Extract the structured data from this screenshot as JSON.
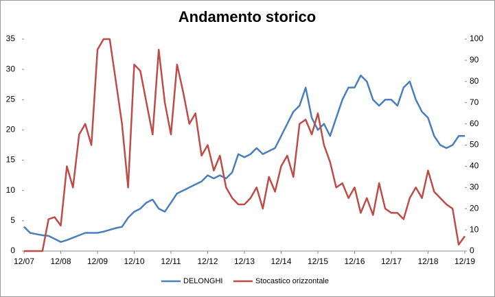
{
  "chart_data": {
    "type": "line",
    "title": "Andamento storico",
    "categories": [
      "12/07",
      null,
      null,
      null,
      null,
      null,
      "12/08",
      null,
      null,
      null,
      null,
      null,
      "12/09",
      null,
      null,
      null,
      null,
      null,
      "12/10",
      null,
      null,
      null,
      null,
      null,
      "12/11",
      null,
      null,
      null,
      null,
      null,
      "12/12",
      null,
      null,
      null,
      null,
      null,
      "12/13",
      null,
      null,
      null,
      null,
      null,
      "12/14",
      null,
      null,
      null,
      null,
      null,
      "12/15",
      null,
      null,
      null,
      null,
      null,
      "12/16",
      null,
      null,
      null,
      null,
      null,
      "12/17",
      null,
      null,
      null,
      null,
      null,
      "12/18",
      null,
      null,
      null,
      null,
      null,
      "12/19"
    ],
    "series": [
      {
        "name": "DELONGHI",
        "color": "#4a7ebb",
        "values": [
          4,
          3,
          2.8,
          2.6,
          2.5,
          2,
          1.5,
          1.8,
          2.2,
          2.6,
          3,
          3,
          3,
          3.2,
          3.5,
          3.8,
          4,
          5.5,
          6.5,
          7,
          8,
          8.5,
          7,
          6.5,
          8,
          9.5,
          10,
          10.5,
          11,
          11.5,
          12.5,
          12,
          12.5,
          12,
          13,
          16,
          15.5,
          16,
          17,
          16,
          16.5,
          17,
          19,
          21,
          23,
          24,
          27,
          22,
          20,
          21,
          19,
          22,
          25,
          27,
          27,
          29,
          28,
          25,
          24,
          25,
          25,
          24,
          27,
          28,
          25,
          23,
          22,
          19,
          17.5,
          17,
          17.5,
          19,
          19
        ]
      },
      {
        "name": "Stocastico orizzontale",
        "color": "#be4b48",
        "axis": "y2",
        "values": [
          0,
          0,
          0,
          0,
          15,
          16,
          12,
          40,
          30,
          55,
          60,
          50,
          95,
          100,
          100,
          80,
          60,
          30,
          88,
          85,
          70,
          55,
          95,
          70,
          55,
          88,
          75,
          60,
          65,
          45,
          50,
          38,
          45,
          30,
          25,
          22,
          22,
          25,
          30,
          20,
          35,
          28,
          40,
          45,
          35,
          60,
          62,
          55,
          65,
          50,
          42,
          30,
          32,
          25,
          30,
          18,
          25,
          17,
          32,
          20,
          18,
          18,
          15,
          25,
          30,
          25,
          38,
          28,
          25,
          22,
          20,
          3,
          7
        ]
      }
    ],
    "ylim": [
      0,
      35
    ],
    "yticks": [
      0,
      5,
      10,
      15,
      20,
      25,
      30,
      35
    ],
    "y2lim": [
      0,
      100
    ],
    "y2ticks": [
      0,
      10,
      20,
      30,
      40,
      50,
      60,
      70,
      80,
      90,
      100
    ],
    "legend": "bottom"
  }
}
